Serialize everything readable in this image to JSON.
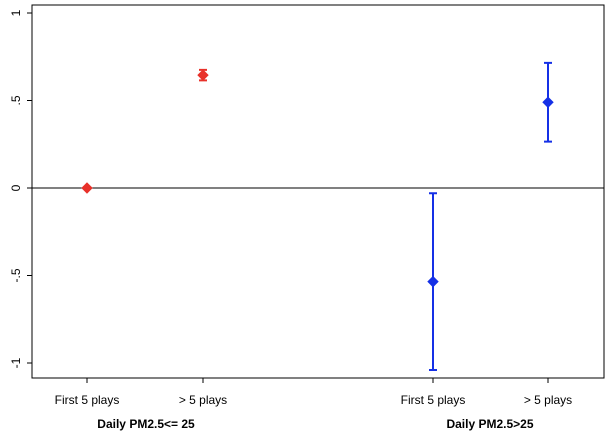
{
  "chart_data": {
    "type": "scatter",
    "title": "",
    "xlabel": "",
    "ylabel": "",
    "ylim": [
      -1.05,
      1.05
    ],
    "yticks": [
      {
        "value": 1,
        "label": "1"
      },
      {
        "value": 0.5,
        "label": ".5"
      },
      {
        "value": 0,
        "label": "0"
      },
      {
        "value": -0.5,
        "label": "-.5"
      },
      {
        "value": -1,
        "label": "-1"
      }
    ],
    "reference_line": 0,
    "grid": false,
    "legend": "none",
    "groups": [
      {
        "label": "Daily PM2.5<= 25",
        "color": "#e8312a",
        "points": [
          {
            "x_label": "First 5 plays",
            "y": 0.0,
            "ci_low": 0.0,
            "ci_high": 0.0
          },
          {
            "x_label": "> 5 plays",
            "y": 0.645,
            "ci_low": 0.615,
            "ci_high": 0.675
          }
        ]
      },
      {
        "label": "Daily PM2.5>25",
        "color": "#1530e6",
        "points": [
          {
            "x_label": "First 5 plays",
            "y": -0.535,
            "ci_low": -1.04,
            "ci_high": -0.03
          },
          {
            "x_label": "> 5 plays",
            "y": 0.49,
            "ci_low": 0.265,
            "ci_high": 0.715
          }
        ]
      }
    ]
  }
}
